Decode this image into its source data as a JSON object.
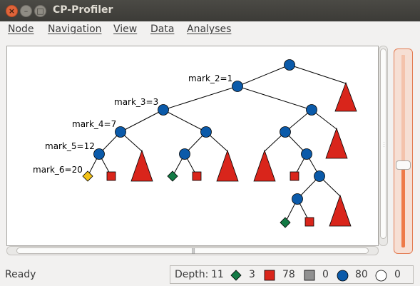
{
  "window": {
    "title": "CP-Profiler",
    "controls": [
      "close",
      "minimize",
      "maximize"
    ]
  },
  "menu": {
    "items": [
      {
        "label": "Node",
        "name": "menu-node"
      },
      {
        "label": "Navigation",
        "name": "menu-navigation"
      },
      {
        "label": "View",
        "name": "menu-view"
      },
      {
        "label": "Data",
        "name": "menu-data"
      },
      {
        "label": "Analyses",
        "name": "menu-analyses"
      }
    ]
  },
  "tree": {
    "marks": [
      "mark_2=1",
      "mark_3=3",
      "mark_4=7",
      "mark_5=12",
      "mark_6=20"
    ],
    "node_counts": {
      "branch_nodes": 15,
      "failed_subtrees": 9,
      "failed_leaves": 4,
      "solutions": 3
    }
  },
  "status": {
    "text": "Ready",
    "depth_label": "Depth:",
    "depth_value": "11",
    "solved_count": "3",
    "failed_count": "78",
    "skipped_count": "0",
    "branch_count": "80",
    "undetermined_count": "0"
  },
  "colors": {
    "branch_node": "#0b5aa9",
    "failed_node": "#d9251b",
    "solution_node": "#137a45",
    "selected_solution": "#f3c217",
    "skipped_node": "#909090",
    "zoom_accent": "#ee7a48"
  },
  "zoom": {
    "level_fraction": 0.43
  }
}
